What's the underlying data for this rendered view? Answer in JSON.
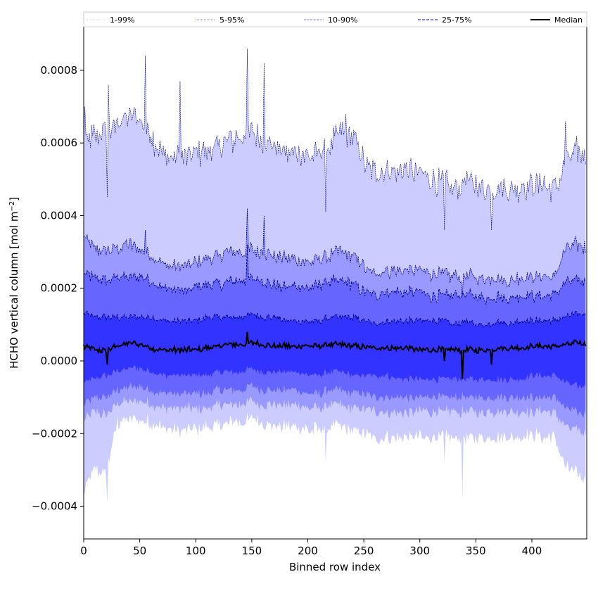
{
  "chart_data": {
    "type": "area",
    "title": "",
    "xlabel": "Binned row index",
    "ylabel_main": "HCHO vertical column [mol m",
    "ylabel_sup": "−2",
    "ylabel_close": "]",
    "xlim": [
      0,
      449
    ],
    "ylim": [
      -0.00049,
      0.00092
    ],
    "x_ticks": [
      0,
      50,
      100,
      150,
      200,
      250,
      300,
      350,
      400
    ],
    "x_tick_labels": [
      "0",
      "50",
      "100",
      "150",
      "200",
      "250",
      "300",
      "350",
      "400"
    ],
    "y_ticks": [
      -0.0004,
      -0.0002,
      0.0,
      0.0002,
      0.0004,
      0.0006,
      0.0008
    ],
    "y_tick_labels": [
      "−0.0004",
      "−0.0002",
      "0.0000",
      "0.0002",
      "0.0004",
      "0.0006",
      "0.0008"
    ],
    "legend": {
      "placement": "top",
      "entries": [
        "1-99%",
        "5-95%",
        "10-90%",
        "25-75%",
        "Median"
      ]
    },
    "colors": {
      "band_1_99": "#ccccff",
      "band_5_95": "#9999ff",
      "band_10_90": "#6666ff",
      "band_25_75": "#3333ff",
      "line_outer": "#000080",
      "median": "#000000"
    },
    "x_count": 449,
    "anchors_x": [
      0,
      10,
      20,
      30,
      40,
      50,
      60,
      70,
      80,
      90,
      100,
      110,
      120,
      130,
      140,
      150,
      160,
      170,
      180,
      190,
      200,
      210,
      220,
      230,
      240,
      250,
      260,
      270,
      280,
      290,
      300,
      310,
      320,
      330,
      340,
      350,
      360,
      370,
      380,
      390,
      400,
      410,
      420,
      430,
      440,
      449
    ],
    "profiles": {
      "p99": [
        0.0006,
        0.00062,
        0.00063,
        0.00065,
        0.00068,
        0.00067,
        0.00062,
        0.00057,
        0.00056,
        0.00056,
        0.00057,
        0.00058,
        0.00059,
        0.00061,
        0.00061,
        0.00063,
        0.0006,
        0.00059,
        0.00057,
        0.00058,
        0.00056,
        0.00057,
        0.0006,
        0.00063,
        0.00061,
        0.00055,
        0.00052,
        0.00053,
        0.00052,
        0.00053,
        0.00052,
        0.0005,
        0.00049,
        0.00048,
        0.0005,
        0.00049,
        0.00047,
        0.00048,
        0.00047,
        0.00048,
        0.00048,
        0.00049,
        0.00047,
        0.00055,
        0.00058,
        0.00056
      ],
      "p95": [
        0.00033,
        0.00031,
        0.0003,
        0.00031,
        0.00032,
        0.00031,
        0.00029,
        0.00027,
        0.00026,
        0.00026,
        0.00027,
        0.00028,
        0.00029,
        0.0003,
        0.0003,
        0.00031,
        0.0003,
        0.00029,
        0.00028,
        0.00028,
        0.00027,
        0.00028,
        0.00029,
        0.0003,
        0.00029,
        0.00026,
        0.00024,
        0.00025,
        0.00025,
        0.00025,
        0.00025,
        0.00024,
        0.00024,
        0.00023,
        0.00024,
        0.00023,
        0.00023,
        0.00023,
        0.00022,
        0.00023,
        0.00023,
        0.00023,
        0.00023,
        0.00031,
        0.00032,
        0.00031
      ],
      "p90": [
        0.00024,
        0.00023,
        0.00022,
        0.00023,
        0.00023,
        0.00023,
        0.00022,
        0.0002,
        0.0002,
        0.00019,
        0.0002,
        0.00021,
        0.00021,
        0.00022,
        0.00022,
        0.00023,
        0.00022,
        0.00021,
        0.0002,
        0.00021,
        0.0002,
        0.00021,
        0.00022,
        0.00022,
        0.00021,
        0.00019,
        0.00018,
        0.00019,
        0.00019,
        0.00019,
        0.00019,
        0.00018,
        0.00018,
        0.00018,
        0.00018,
        0.00018,
        0.00017,
        0.00018,
        0.00017,
        0.00018,
        0.00018,
        0.00018,
        0.00018,
        0.00022,
        0.00022,
        0.00022
      ],
      "p75": [
        0.00013,
        0.00012,
        0.00012,
        0.00012,
        0.00012,
        0.00012,
        0.00012,
        0.00011,
        0.00011,
        0.00011,
        0.00011,
        0.00012,
        0.00012,
        0.00012,
        0.00012,
        0.00013,
        0.00012,
        0.00012,
        0.00011,
        0.00011,
        0.00011,
        0.00011,
        0.00012,
        0.00012,
        0.00012,
        0.00011,
        0.0001,
        0.00011,
        0.00011,
        0.00011,
        0.00011,
        0.00011,
        0.00011,
        0.0001,
        0.00011,
        0.0001,
        0.0001,
        0.00011,
        0.0001,
        0.00011,
        0.00011,
        0.00011,
        0.00011,
        0.00012,
        0.00013,
        0.00013
      ],
      "median": [
        4e-05,
        3e-05,
        3e-05,
        4e-05,
        5e-05,
        4.5e-05,
        3.5e-05,
        3e-05,
        3e-05,
        3e-05,
        3e-05,
        3.5e-05,
        4e-05,
        4.5e-05,
        4.5e-05,
        5e-05,
        4.5e-05,
        4e-05,
        4e-05,
        4e-05,
        4e-05,
        4e-05,
        4.5e-05,
        4.5e-05,
        4e-05,
        4e-05,
        3.5e-05,
        3.5e-05,
        3.5e-05,
        3.5e-05,
        3e-05,
        3e-05,
        3e-05,
        3e-05,
        3e-05,
        3e-05,
        3e-05,
        3.5e-05,
        3.5e-05,
        3.5e-05,
        4e-05,
        4e-05,
        4e-05,
        4.5e-05,
        5e-05,
        4.5e-05
      ],
      "p25": [
        -6e-05,
        -5e-05,
        -4e-05,
        -3e-05,
        -2e-05,
        -2e-05,
        -3e-05,
        -4e-05,
        -4e-05,
        -4e-05,
        -4e-05,
        -4e-05,
        -3e-05,
        -3e-05,
        -3e-05,
        -2e-05,
        -3e-05,
        -3e-05,
        -3e-05,
        -3e-05,
        -4e-05,
        -4e-05,
        -3e-05,
        -3e-05,
        -4e-05,
        -4e-05,
        -4e-05,
        -4e-05,
        -5e-05,
        -5e-05,
        -5e-05,
        -5e-05,
        -5e-05,
        -5e-05,
        -5e-05,
        -5e-05,
        -5e-05,
        -5e-05,
        -5e-05,
        -5e-05,
        -4e-05,
        -4e-05,
        -4e-05,
        -6e-05,
        -7e-05,
        -7e-05
      ],
      "p10": [
        -0.00012,
        -0.0001,
        -0.0001,
        -8e-05,
        -7e-05,
        -7e-05,
        -8e-05,
        -9e-05,
        -9e-05,
        -9e-05,
        -9e-05,
        -9e-05,
        -8e-05,
        -8e-05,
        -8e-05,
        -7e-05,
        -8e-05,
        -8e-05,
        -8e-05,
        -8e-05,
        -9e-05,
        -9e-05,
        -8e-05,
        -8e-05,
        -9e-05,
        -9e-05,
        -0.0001,
        -0.0001,
        -0.0001,
        -0.0001,
        -0.0001,
        -0.0001,
        -0.0001,
        -0.0001,
        -0.0001,
        -0.0001,
        -0.0001,
        -0.0001,
        -0.0001,
        -0.0001,
        -0.0001,
        -0.0001,
        -0.0001,
        -0.00013,
        -0.00014,
        -0.00015
      ],
      "p05": [
        -0.00016,
        -0.00014,
        -0.00015,
        -0.00012,
        -0.00011,
        -0.00011,
        -0.00012,
        -0.00013,
        -0.00013,
        -0.00013,
        -0.00013,
        -0.00013,
        -0.00012,
        -0.00012,
        -0.00012,
        -0.00011,
        -0.00012,
        -0.00012,
        -0.00012,
        -0.00012,
        -0.00013,
        -0.00013,
        -0.00012,
        -0.00012,
        -0.00013,
        -0.00013,
        -0.00014,
        -0.00014,
        -0.00014,
        -0.00014,
        -0.00014,
        -0.00014,
        -0.00014,
        -0.00014,
        -0.00014,
        -0.00014,
        -0.00014,
        -0.00014,
        -0.00014,
        -0.00014,
        -0.00014,
        -0.00014,
        -0.00014,
        -0.00018,
        -0.00019,
        -0.0002
      ],
      "p01": [
        -0.00036,
        -0.0003,
        -0.00031,
        -0.00017,
        -0.00016,
        -0.00016,
        -0.00017,
        -0.00018,
        -0.00019,
        -0.00019,
        -0.00019,
        -0.00018,
        -0.00018,
        -0.00017,
        -0.00017,
        -0.00016,
        -0.00017,
        -0.00018,
        -0.00018,
        -0.00018,
        -0.00019,
        -0.00019,
        -0.00018,
        -0.00018,
        -0.00019,
        -0.0002,
        -0.00021,
        -0.00021,
        -0.00021,
        -0.00021,
        -0.00021,
        -0.00021,
        -0.00021,
        -0.00021,
        -0.00021,
        -0.00021,
        -0.00021,
        -0.00021,
        -0.00021,
        -0.00021,
        -0.0002,
        -0.00021,
        -0.00021,
        -0.00029,
        -0.00031,
        -0.00033
      ]
    },
    "spikes": [
      {
        "x": 1,
        "p99": 0.0007,
        "p95": 0.00034
      },
      {
        "x": 21,
        "p99": 0.00045,
        "p01": -0.00039,
        "median": -1e-05
      },
      {
        "x": 22,
        "p99": 0.00076
      },
      {
        "x": 55,
        "p99": 0.00084,
        "p95": 0.00036
      },
      {
        "x": 86,
        "p99": 0.00077
      },
      {
        "x": 146,
        "p99": 0.00086,
        "p95": 0.00042,
        "p90": 0.00032,
        "median": 8e-05
      },
      {
        "x": 161,
        "p99": 0.00082,
        "p95": 0.0004
      },
      {
        "x": 216,
        "p99": 0.00041,
        "p01": -0.00028
      },
      {
        "x": 234,
        "p99": 0.00068
      },
      {
        "x": 322,
        "p99": 0.00036,
        "p01": -0.00028,
        "median": 0.0
      },
      {
        "x": 338,
        "p99": 0.0005,
        "p95": 0.00018,
        "p01": -0.00038,
        "median": -5e-05
      },
      {
        "x": 364,
        "p99": 0.00036,
        "median": -1e-05
      },
      {
        "x": 430,
        "p99": 0.00066
      }
    ]
  }
}
